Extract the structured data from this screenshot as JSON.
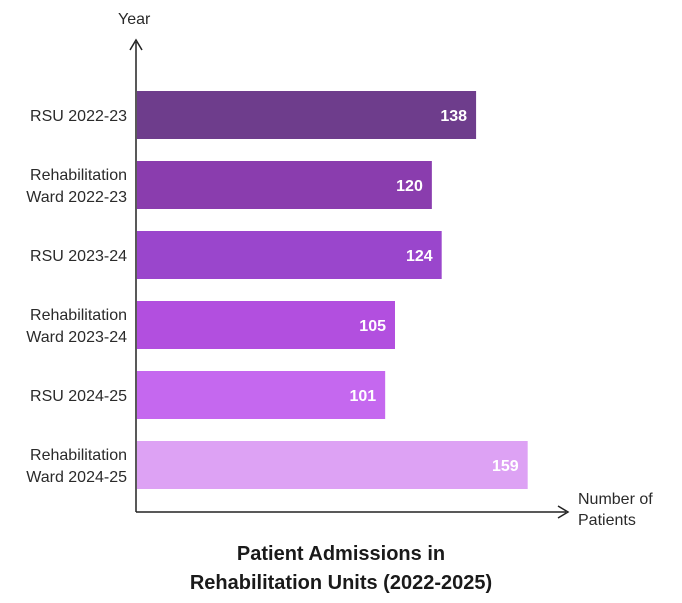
{
  "chart_data": {
    "type": "bar",
    "orientation": "horizontal",
    "title_lines": [
      "Patient Admissions in",
      "Rehabilitation Units (2022-2025)"
    ],
    "ylabel": "Year",
    "xlabel_lines": [
      "Number of",
      "Patients"
    ],
    "categories": [
      [
        "RSU 2022-23"
      ],
      [
        "Rehabilitation",
        "Ward 2022-23"
      ],
      [
        "RSU 2023-24"
      ],
      [
        "Rehabilitation",
        "Ward 2023-24"
      ],
      [
        "RSU 2024-25"
      ],
      [
        "Rehabilitation",
        "Ward 2024-25"
      ]
    ],
    "values": [
      138,
      120,
      124,
      105,
      101,
      159
    ],
    "colors": [
      "#6e3d8c",
      "#8a3dae",
      "#9a46cc",
      "#b24fdf",
      "#c568ef",
      "#dda2f4"
    ],
    "xlim": [
      0,
      175
    ],
    "grid": false,
    "legend": "none"
  }
}
